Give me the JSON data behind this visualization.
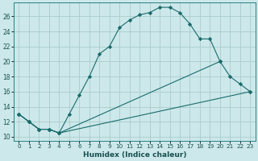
{
  "xlabel": "Humidex (Indice chaleur)",
  "bg_color": "#cce8ea",
  "grid_color": "#aacccc",
  "line_color": "#1a6b6b",
  "xlim": [
    -0.5,
    23.5
  ],
  "ylim": [
    9.5,
    27.8
  ],
  "xticks": [
    0,
    1,
    2,
    3,
    4,
    5,
    6,
    7,
    8,
    9,
    10,
    11,
    12,
    13,
    14,
    15,
    16,
    17,
    18,
    19,
    20,
    21,
    22,
    23
  ],
  "yticks": [
    10,
    12,
    14,
    16,
    18,
    20,
    22,
    24,
    26
  ],
  "line1_x": [
    0,
    1,
    2,
    3,
    4,
    5,
    6,
    7,
    8,
    9,
    10,
    11,
    12,
    13,
    14,
    15,
    16,
    17,
    18,
    19,
    20
  ],
  "line1_y": [
    13,
    12,
    11,
    11,
    10.5,
    13,
    15.5,
    18,
    21,
    22,
    24.5,
    25.5,
    26.2,
    26.5,
    27.2,
    27.2,
    26.5,
    25,
    23,
    23,
    20
  ],
  "line2_x": [
    0,
    1,
    2,
    3,
    4,
    20,
    21,
    22,
    23
  ],
  "line2_y": [
    13,
    12,
    11,
    11,
    10.5,
    20,
    18,
    17,
    16
  ],
  "line3_x": [
    0,
    1,
    2,
    3,
    4,
    23
  ],
  "line3_y": [
    13,
    12,
    11,
    11,
    10.5,
    16
  ],
  "markers1_x": [
    0,
    1,
    2,
    3,
    4,
    5,
    6,
    7,
    8,
    9,
    10,
    11,
    12,
    13,
    14,
    15,
    16,
    17,
    18,
    19,
    20
  ],
  "markers1_y": [
    13,
    12,
    11,
    11,
    10.5,
    13,
    15.5,
    18,
    21,
    22,
    24.5,
    25.5,
    26.2,
    26.5,
    27.2,
    27.2,
    26.5,
    25,
    23,
    23,
    20
  ],
  "markers2_x": [
    0,
    1,
    2,
    3,
    4,
    20,
    21,
    22,
    23
  ],
  "markers2_y": [
    13,
    12,
    11,
    11,
    10.5,
    20,
    18,
    17,
    16
  ],
  "markers3_x": [
    0,
    1,
    2,
    3,
    4,
    23
  ],
  "markers3_y": [
    13,
    12,
    11,
    11,
    10.5,
    16
  ]
}
